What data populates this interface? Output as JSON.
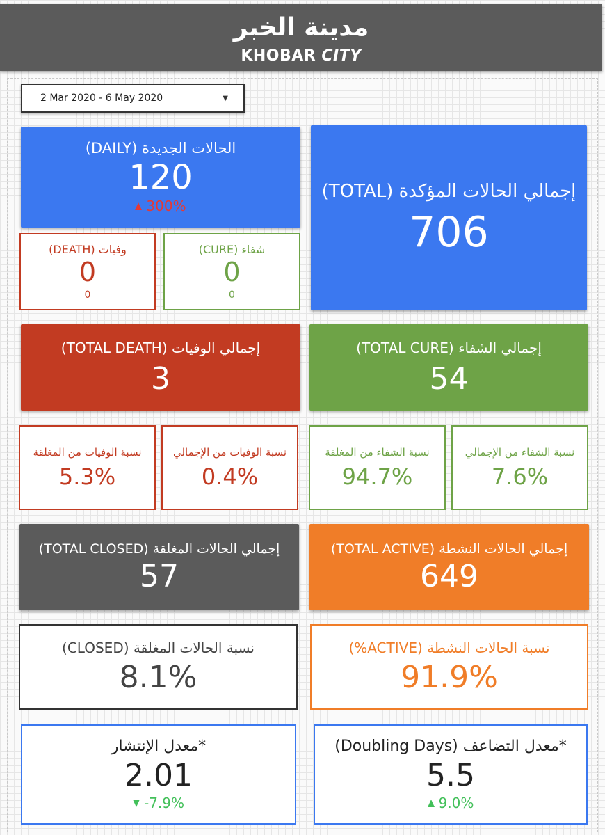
{
  "header": {
    "title_ar": "مدينة الخبر",
    "title_en_prefix": "KHOBAR",
    "title_en_suffix": "CITY"
  },
  "date_range": {
    "value": "2 Mar 2020 - 6 May 2020"
  },
  "cards": {
    "daily_new": {
      "label": "الحالات الجديدة (DAILY)",
      "value": "120",
      "delta": "300%",
      "delta_direction": "up",
      "color": "#3b78f0",
      "delta_color": "#e53935"
    },
    "total_confirmed": {
      "label": "إجمالي الحالات المؤكدة (TOTAL)",
      "value": "706",
      "color": "#3b78f0"
    },
    "daily_death": {
      "label": "وفيات (DEATH)",
      "value": "0",
      "sub": "0",
      "color": "#c23b22"
    },
    "daily_cure": {
      "label": "شفاء (CURE)",
      "value": "0",
      "sub": "0",
      "color": "#6ea347"
    },
    "total_death": {
      "label": "إجمالي الوفيات (TOTAL DEATH)",
      "value": "3",
      "color": "#c23b22"
    },
    "total_cure": {
      "label": "إجمالي الشفاء (TOTAL CURE)",
      "value": "54",
      "color": "#6ea347"
    },
    "death_rate_closed": {
      "label": "نسبة الوفيات من المغلقة",
      "value": "5.3%",
      "color": "#c23b22"
    },
    "death_rate_total": {
      "label": "نسبة الوفيات من الإجمالي",
      "value": "0.4%",
      "color": "#c23b22"
    },
    "cure_rate_closed": {
      "label": "نسبة الشفاء من المغلقة",
      "value": "94.7%",
      "color": "#6ea347"
    },
    "cure_rate_total": {
      "label": "نسبة الشفاء من الإجمالي",
      "value": "7.6%",
      "color": "#6ea347"
    },
    "total_closed": {
      "label": "إجمالي الحالات المغلقة (TOTAL CLOSED)",
      "value": "57",
      "color": "#5b5b5b"
    },
    "total_active": {
      "label": "إجمالي الحالات النشطة (TOTAL ACTIVE)",
      "value": "649",
      "color": "#f07d28"
    },
    "closed_pct": {
      "label": "نسبة الحالات المغلقة (CLOSED)",
      "value": "8.1%",
      "color": "#444444"
    },
    "active_pct": {
      "label": "نسبة الحالات النشطة (ACTIVE%)",
      "value": "91.9%",
      "color": "#f07d28"
    },
    "spread_rate": {
      "label": "*معدل الإنتشار",
      "value": "2.01",
      "delta": "-7.9%",
      "delta_direction": "down",
      "color": "#3b78f0",
      "delta_color": "#43c05a"
    },
    "doubling": {
      "label": "*معدل التضاعف (Doubling Days)",
      "value": "5.5",
      "delta": "9.0%",
      "delta_direction": "up",
      "color": "#3b78f0",
      "delta_color": "#43c05a"
    }
  }
}
